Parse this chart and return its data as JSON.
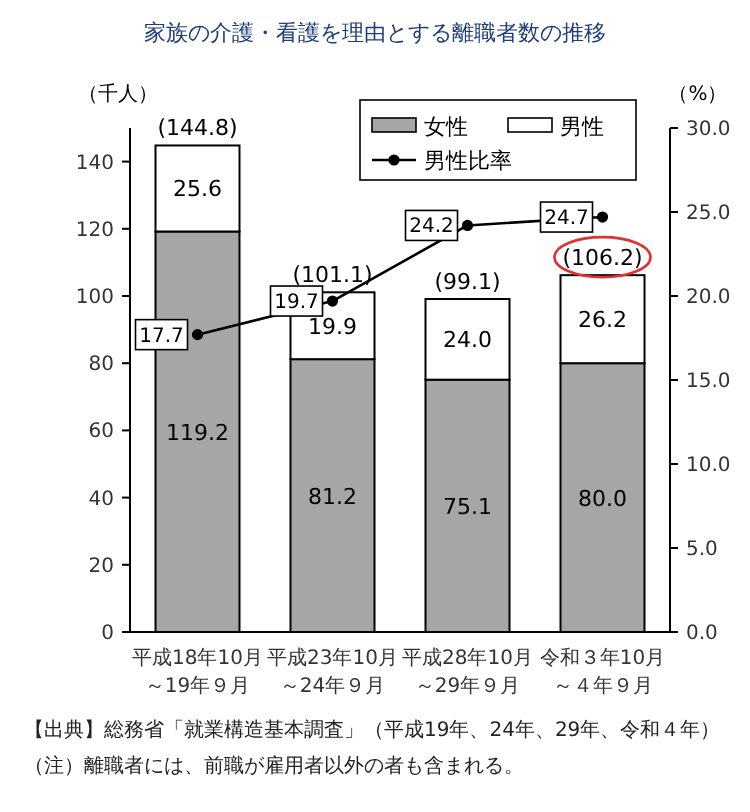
{
  "chart_data": {
    "type": "bar",
    "title": "家族の介護・看護を理由とする離職者数の推移",
    "categories": [
      "平成18年10月～19年９月",
      "平成23年10月～24年９月",
      "平成28年10月～29年９月",
      "令和３年10月～４年９月"
    ],
    "series": [
      {
        "name": "女性",
        "color": "#a6a6a6",
        "values": [
          119.2,
          81.2,
          75.1,
          80.0
        ],
        "value_labels": [
          "119.2",
          "81.2",
          "75.1",
          "80.0"
        ]
      },
      {
        "name": "男性",
        "color": "#ffffff",
        "values": [
          25.6,
          19.9,
          24.0,
          26.2
        ],
        "value_labels": [
          "25.6",
          "19.9",
          "24.0",
          "26.2"
        ]
      },
      {
        "name": "男性比率",
        "type": "line",
        "axis": "y2",
        "color": "#000000",
        "marker": "circle",
        "values": [
          17.7,
          19.7,
          24.2,
          24.7
        ],
        "value_labels": [
          "17.7",
          "19.7",
          "24.2",
          "24.7"
        ]
      }
    ],
    "stacked": true,
    "totals": [
      "(144.8)",
      "(101.1)",
      "(99.1)",
      "(106.2)"
    ],
    "ylabel": "（千人）",
    "y2label": "（%）",
    "ylim": [
      0,
      150
    ],
    "yticks": [
      0,
      20,
      40,
      60,
      80,
      100,
      120,
      140
    ],
    "y2lim": [
      0,
      30
    ],
    "y2ticks": [
      {
        "value": 0,
        "label": "0.0"
      },
      {
        "value": 5,
        "label": "5.0"
      },
      {
        "value": 10,
        "label": "10.0"
      },
      {
        "value": 15,
        "label": "15.0"
      },
      {
        "value": 20,
        "label": "20.0"
      },
      {
        "value": 25,
        "label": "25.0"
      },
      {
        "value": 30,
        "label": "30.0"
      }
    ],
    "legend": "top right",
    "grid": false,
    "annotations": [
      "【出典】総務省「就業構造基本調査」（平成19年、24年、29年、令和４年）",
      "（注）離職者には、前職が雇用者以外の者も含まれる。"
    ]
  }
}
